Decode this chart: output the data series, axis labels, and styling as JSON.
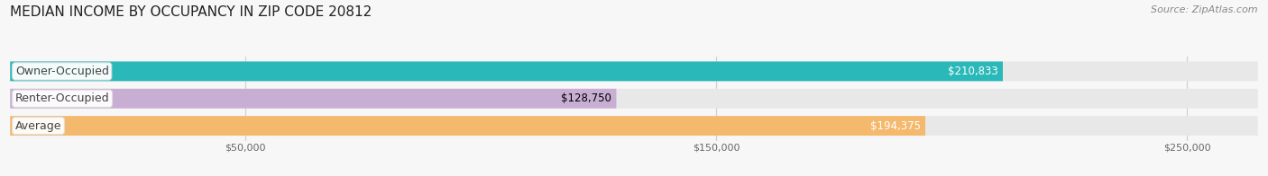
{
  "title": "MEDIAN INCOME BY OCCUPANCY IN ZIP CODE 20812",
  "source_text": "Source: ZipAtlas.com",
  "categories": [
    "Owner-Occupied",
    "Renter-Occupied",
    "Average"
  ],
  "values": [
    210833,
    128750,
    194375
  ],
  "labels": [
    "$210,833",
    "$128,750",
    "$194,375"
  ],
  "bar_colors": [
    "#2ab8b8",
    "#c9aed4",
    "#f5b96e"
  ],
  "bg_bar_color": "#e8e8e8",
  "x_ticks": [
    50000,
    150000,
    250000
  ],
  "x_tick_labels": [
    "$50,000",
    "$150,000",
    "$250,000"
  ],
  "xlim_max": 265000,
  "title_fontsize": 11,
  "source_fontsize": 8,
  "tick_fontsize": 8,
  "bar_label_fontsize": 8.5,
  "cat_label_fontsize": 9,
  "background_color": "#f7f7f7",
  "grid_color": "#d0d0d0",
  "label_text_colors": [
    "white",
    "black",
    "white"
  ]
}
